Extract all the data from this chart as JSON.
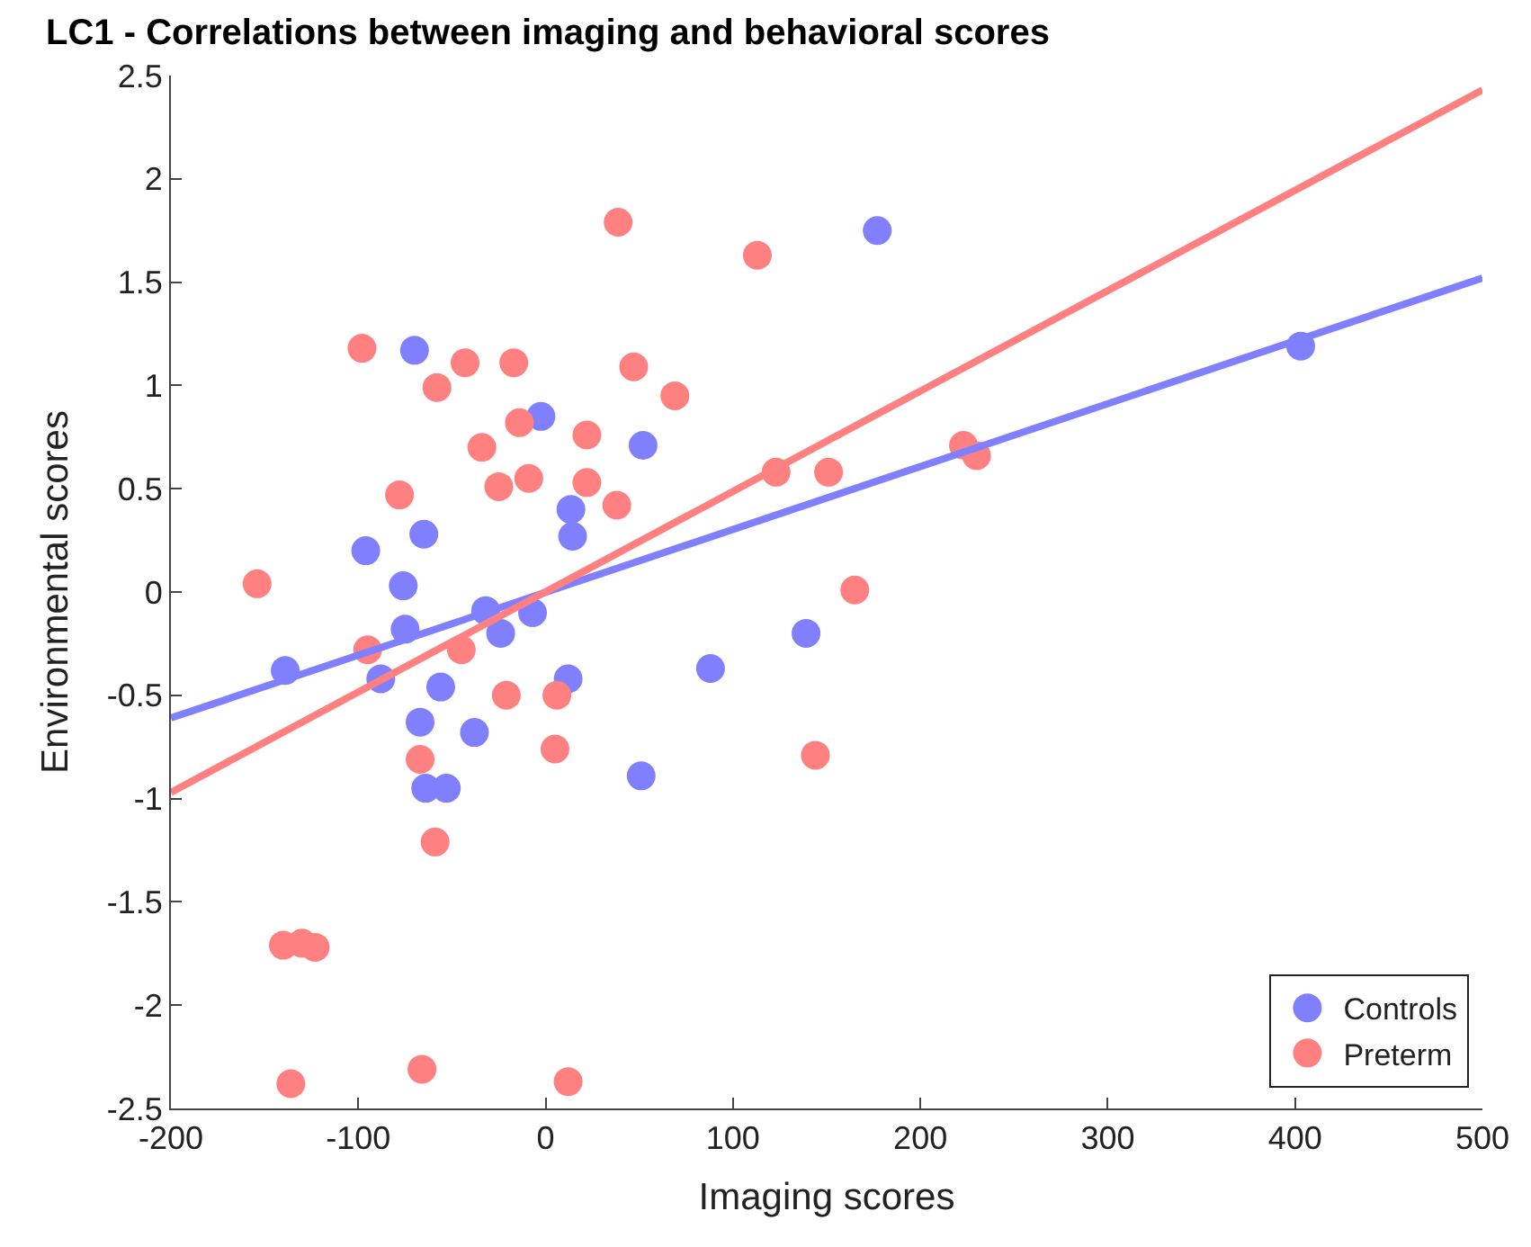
{
  "chart_data": {
    "type": "scatter",
    "title": "LC1 - Correlations between imaging and behavioral scores",
    "xlabel": "Imaging scores",
    "ylabel": "Environmental scores",
    "xlim": [
      -200,
      500
    ],
    "xticks": [
      -200,
      -100,
      0,
      100,
      200,
      300,
      400,
      500
    ],
    "ylim": [
      -2.5,
      2.5
    ],
    "yticks": [
      -2.5,
      -2,
      -1.5,
      -1,
      -0.5,
      0,
      0.5,
      1,
      1.5,
      2,
      2.5
    ],
    "legend": "bottom right",
    "series": [
      {
        "name": "Controls",
        "color": "#8080ff",
        "marker": "circle",
        "x": [
          -70,
          -2.5,
          52,
          13.5,
          14.4,
          -65,
          -96,
          -76,
          -75,
          -32,
          -24,
          -7,
          -139,
          -88,
          -56,
          12,
          -67,
          -38,
          -64,
          -53,
          51,
          177,
          88,
          139,
          403
        ],
        "values": [
          1.17,
          0.85,
          0.71,
          0.4,
          0.27,
          0.28,
          0.2,
          0.03,
          -0.18,
          -0.09,
          -0.2,
          -0.1,
          -0.38,
          -0.42,
          -0.46,
          -0.42,
          -0.63,
          -0.68,
          -0.95,
          -0.95,
          -0.89,
          1.75,
          -0.37,
          -0.2,
          1.19
        ]
      },
      {
        "name": "Preterm",
        "color": "#ff8080",
        "marker": "circle",
        "x": [
          38.7,
          -98,
          -58,
          -43,
          -17,
          47,
          69,
          -14,
          22,
          -34,
          -78,
          -25,
          -9,
          22,
          38,
          -154,
          -95,
          -45,
          -21,
          6,
          5,
          -67,
          -59,
          -140,
          -130,
          -123,
          -136,
          -66,
          12,
          113,
          123,
          151,
          223,
          230,
          165,
          144
        ],
        "values": [
          1.79,
          1.18,
          0.99,
          1.11,
          1.11,
          1.09,
          0.95,
          0.82,
          0.76,
          0.7,
          0.47,
          0.51,
          0.55,
          0.53,
          0.42,
          0.04,
          -0.28,
          -0.28,
          -0.5,
          -0.5,
          -0.76,
          -0.81,
          -1.21,
          -1.71,
          -1.7,
          -1.72,
          -2.38,
          -2.31,
          -2.37,
          1.63,
          0.58,
          0.58,
          0.71,
          0.66,
          0.01,
          -0.79
        ]
      },
      {
        "type": "line",
        "marker": "none",
        "color": "#8080ff",
        "x": [
          -200,
          500
        ],
        "values": [
          -0.61,
          1.52
        ]
      },
      {
        "type": "line",
        "marker": "none",
        "color": "#ff8080",
        "x": [
          -200,
          500
        ],
        "values": [
          -0.97,
          2.43
        ]
      }
    ]
  }
}
